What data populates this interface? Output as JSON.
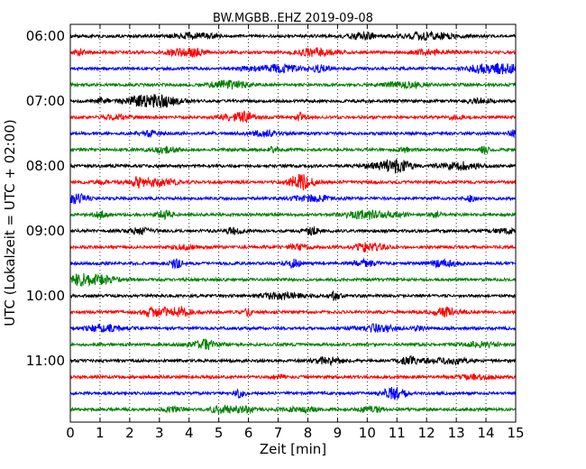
{
  "chart_data": {
    "type": "line",
    "title": "BW.MGBB..EHZ 2019-09-08",
    "xlabel": "Zeit  [min]",
    "ylabel": "UTC (Lokalzeit = UTC + 02:00)",
    "xlim": [
      0,
      15
    ],
    "x_ticks": [
      "0",
      "1",
      "2",
      "3",
      "4",
      "5",
      "6",
      "7",
      "8",
      "9",
      "10",
      "11",
      "12",
      "13",
      "14",
      "15"
    ],
    "y_tick_labels": [
      "06:00",
      "07:00",
      "08:00",
      "09:00",
      "10:00",
      "11:00"
    ],
    "grid": "vertical-dotted",
    "series_colors": [
      "#000000",
      "#ff0000",
      "#0000ff",
      "#008000"
    ],
    "trace_count": 24,
    "traces_start": "06:00",
    "trace_interval_min": 15
  }
}
